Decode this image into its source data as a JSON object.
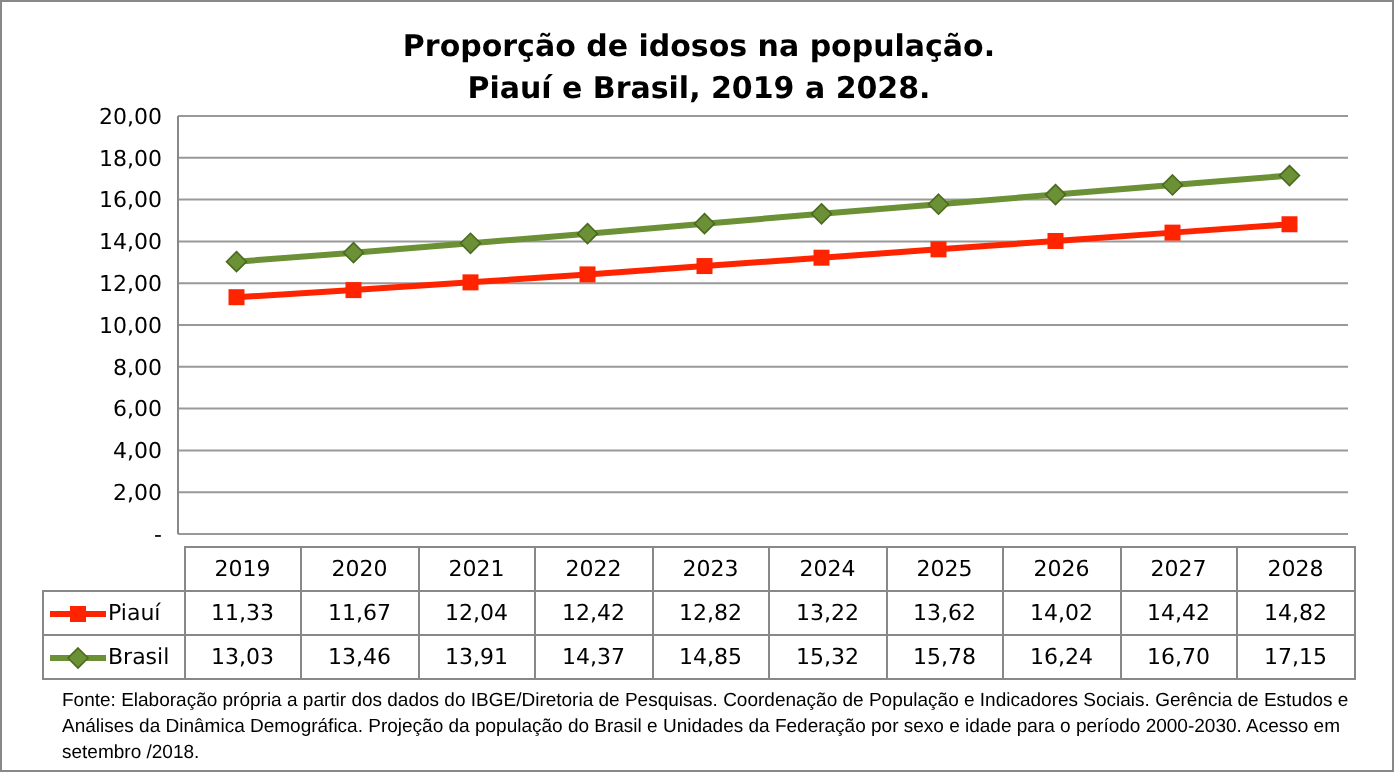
{
  "chart_data": {
    "type": "line",
    "title": "Proporção de idosos na população.\nPiauí e Brasil, 2019 a 2028.",
    "categories": [
      "2019",
      "2020",
      "2021",
      "2022",
      "2023",
      "2024",
      "2025",
      "2026",
      "2027",
      "2028"
    ],
    "series": [
      {
        "name": "Piauí",
        "color": "#ff2400",
        "marker": "square",
        "values": [
          11.33,
          11.67,
          12.04,
          12.42,
          12.82,
          13.22,
          13.62,
          14.02,
          14.42,
          14.82
        ],
        "value_labels": [
          "11,33",
          "11,67",
          "12,04",
          "12,42",
          "12,82",
          "13,22",
          "13,62",
          "14,02",
          "14,42",
          "14,82"
        ]
      },
      {
        "name": "Brasil",
        "color": "#6b9035",
        "marker": "diamond",
        "values": [
          13.03,
          13.46,
          13.91,
          14.37,
          14.85,
          15.32,
          15.78,
          16.24,
          16.7,
          17.15
        ],
        "value_labels": [
          "13,03",
          "13,46",
          "13,91",
          "14,37",
          "14,85",
          "15,32",
          "15,78",
          "16,24",
          "16,70",
          "17,15"
        ]
      }
    ],
    "ylim": [
      0,
      20
    ],
    "yticks": [
      {
        "value": 0,
        "label": "-"
      },
      {
        "value": 2,
        "label": "2,00"
      },
      {
        "value": 4,
        "label": "4,00"
      },
      {
        "value": 6,
        "label": "6,00"
      },
      {
        "value": 8,
        "label": "8,00"
      },
      {
        "value": 10,
        "label": "10,00"
      },
      {
        "value": 12,
        "label": "12,00"
      },
      {
        "value": 14,
        "label": "14,00"
      },
      {
        "value": 16,
        "label": "16,00"
      },
      {
        "value": 18,
        "label": "18,00"
      },
      {
        "value": 20,
        "label": "20,00"
      }
    ],
    "grid": "y",
    "legend": "bottom",
    "line_style": "solid",
    "annotations": [
      "Fonte: Elaboração própria a partir dos dados do IBGE/Diretoria de Pesquisas. Coordenação de População e Indicadores Sociais. Gerência de Estudos e Análises da Dinâmica Demográfica. Projeção da população do Brasil e Unidades da Federação por sexo e idade para o período 2000-2030. Acesso em setembro /2018."
    ]
  }
}
